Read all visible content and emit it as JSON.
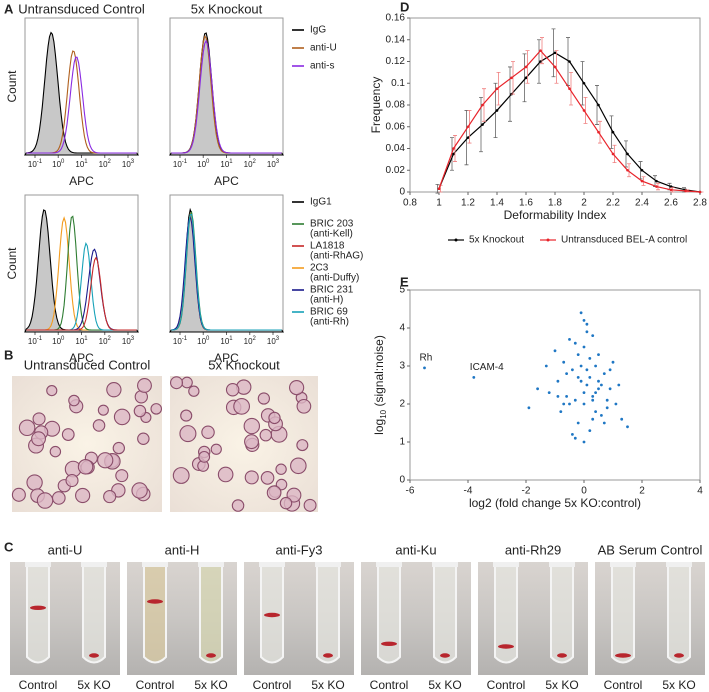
{
  "panel_A": {
    "label": "A",
    "titles": [
      "Untransduced Control",
      "5x Knockout"
    ],
    "xlabel": "APC",
    "ylabel": "Count",
    "ticks": [
      {
        "base": "10",
        "exp": "-1"
      },
      {
        "base": "10",
        "exp": "0"
      },
      {
        "base": "10",
        "exp": "1"
      },
      {
        "base": "10",
        "exp": "2"
      },
      {
        "base": "10",
        "exp": "3"
      }
    ],
    "legends": [
      [
        {
          "name": "IgG",
          "color": "#000000"
        },
        {
          "name": "anti-U",
          "color": "#b0601e"
        },
        {
          "name": "anti-s",
          "color": "#8a2be2"
        }
      ],
      [
        {
          "name": "IgG1",
          "color": "#000000"
        },
        {
          "name": "BRIC 203",
          "sub": "(anti-Kell)",
          "color": "#2e7d32"
        },
        {
          "name": "LA1818",
          "sub": "(anti-RhAG)",
          "color": "#c62828"
        },
        {
          "name": "2C3",
          "sub": "(anti-Duffy)",
          "color": "#f39c1f"
        },
        {
          "name": "BRIC 231",
          "sub": "(anti-H)",
          "color": "#1a1a8c"
        },
        {
          "name": "BRIC 69",
          "sub": "(anti-Rh)",
          "color": "#17a2b8"
        }
      ]
    ]
  },
  "panel_B": {
    "label": "B",
    "titles": [
      "Untransduced Control",
      "5x Knockout"
    ]
  },
  "panel_C": {
    "label": "C",
    "titles": [
      "anti-U",
      "anti-H",
      "anti-Fy3",
      "anti-Ku",
      "anti-Rh29",
      "AB Serum Control"
    ],
    "tube_labels": [
      "Control",
      "5x KO"
    ]
  },
  "chart_data": [
    {
      "type": "line",
      "panel_label": "D",
      "xlabel": "Deformability Index",
      "ylabel": "Frequency",
      "x": [
        1.0,
        1.1,
        1.2,
        1.3,
        1.4,
        1.5,
        1.6,
        1.7,
        1.8,
        1.9,
        2.0,
        2.1,
        2.2,
        2.3,
        2.4,
        2.5,
        2.6,
        2.7,
        2.8
      ],
      "series": [
        {
          "name": "5x Knockout",
          "color": "#000000",
          "values": [
            0.003,
            0.035,
            0.05,
            0.062,
            0.075,
            0.09,
            0.105,
            0.12,
            0.128,
            0.12,
            0.1,
            0.08,
            0.055,
            0.035,
            0.02,
            0.01,
            0.005,
            0.002,
            0.0
          ],
          "errors": [
            0.004,
            0.015,
            0.025,
            0.025,
            0.025,
            0.025,
            0.022,
            0.02,
            0.022,
            0.022,
            0.02,
            0.018,
            0.015,
            0.012,
            0.008,
            0.005,
            0.003,
            0.002,
            0.0
          ]
        },
        {
          "name": "Untransduced BEL-A control",
          "color": "#e8232a",
          "values": [
            0.003,
            0.04,
            0.06,
            0.08,
            0.095,
            0.105,
            0.115,
            0.13,
            0.115,
            0.095,
            0.075,
            0.055,
            0.035,
            0.02,
            0.01,
            0.005,
            0.002,
            0.001,
            0.0
          ],
          "errors": [
            0.003,
            0.012,
            0.015,
            0.015,
            0.015,
            0.015,
            0.015,
            0.012,
            0.015,
            0.015,
            0.012,
            0.01,
            0.008,
            0.006,
            0.004,
            0.003,
            0.002,
            0.001,
            0.0
          ]
        }
      ],
      "xlim": [
        0.8,
        2.8
      ],
      "xticks": [
        0.8,
        1,
        1.2,
        1.4,
        1.6,
        1.8,
        2,
        2.2,
        2.4,
        2.6,
        2.8
      ],
      "ylim": [
        0,
        0.16
      ],
      "yticks": [
        0,
        0.02,
        0.04,
        0.06,
        0.08,
        0.1,
        0.12,
        0.14,
        0.16
      ]
    },
    {
      "type": "scatter",
      "panel_label": "E",
      "xlabel": "log2 (fold change 5x KO:control)",
      "ylabel_parts": [
        "log",
        "10",
        " (signal:noise)"
      ],
      "color": "#1f77c4",
      "x": [
        0.1,
        -0.3,
        0.4,
        -0.6,
        0.8,
        0.0,
        -0.2,
        0.3,
        -0.9,
        1.1,
        0.5,
        -0.4,
        0.2,
        -0.1,
        0.6,
        -0.7,
        0.9,
        -1.2,
        0.0,
        0.3,
        -0.5,
        1.3,
        0.1,
        -0.8,
        0.4,
        -0.3,
        0.7,
        -1.6,
        0.2,
        -0.1,
        0.5,
        -0.6,
        1.0,
        0.0,
        -0.4,
        0.3,
        -1.0,
        0.8,
        0.1,
        -0.2,
        1.5,
        -1.9,
        0.6,
        -0.5,
        0.2,
        0.0,
        -0.3,
        0.9,
        -0.7,
        0.4,
        0.1,
        -0.1,
        1.2,
        -1.3,
        0.3,
        0.0,
        -0.9,
        0.7,
        -0.2,
        0.5
      ],
      "values": [
        2.5,
        2.1,
        3.0,
        2.8,
        1.9,
        3.5,
        1.5,
        2.2,
        2.6,
        2.0,
        3.3,
        1.2,
        2.7,
        4.4,
        1.7,
        3.1,
        2.4,
        2.3,
        1.0,
        3.8,
        2.0,
        1.6,
        2.9,
        1.8,
        2.3,
        3.6,
        2.8,
        2.4,
        1.3,
        3.0,
        2.6,
        2.2,
        3.1,
        2.0,
        2.9,
        1.6,
        3.4,
        2.1,
        4.1,
        2.7,
        1.4,
        1.9,
        2.5,
        3.7,
        3.2,
        2.3,
        1.1,
        2.9,
        2.0,
        1.8,
        3.9,
        2.6,
        2.5,
        3.0,
        2.1,
        4.2,
        2.2,
        1.5,
        3.3,
        2.4
      ],
      "labeled_points": [
        {
          "label": "Rh",
          "x": -5.5,
          "y": 2.95
        },
        {
          "label": "ICAM-4",
          "x": -3.8,
          "y": 2.7
        }
      ],
      "xlim": [
        -6,
        4
      ],
      "xticks": [
        -6,
        -4,
        -2,
        0,
        2,
        4
      ],
      "ylim": [
        0,
        5
      ],
      "yticks": [
        0,
        1,
        2,
        3,
        4,
        5
      ]
    }
  ]
}
